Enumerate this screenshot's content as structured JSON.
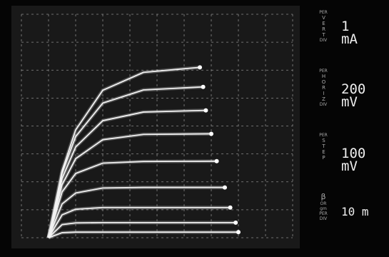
{
  "chart_data": {
    "type": "line",
    "xlim": [
      0,
      10
    ],
    "ylim": [
      0,
      8
    ],
    "xticks": [
      0,
      1,
      2,
      3,
      4,
      5,
      6,
      7,
      8,
      9,
      10
    ],
    "yticks": [
      0,
      1,
      2,
      3,
      4,
      5,
      6,
      7,
      8
    ],
    "grid": true,
    "color": "#f2f2f2",
    "series": [
      {
        "x": [
          1,
          1.5,
          2,
          3,
          4.5,
          6.58
        ],
        "values": [
          0,
          2.4,
          3.86,
          5.28,
          5.92,
          6.1
        ]
      },
      {
        "x": [
          1,
          1.5,
          2,
          3,
          4.5,
          6.7
        ],
        "values": [
          0,
          2.31,
          3.62,
          4.82,
          5.29,
          5.4
        ]
      },
      {
        "x": [
          1,
          1.5,
          2,
          3,
          4.5,
          6.8
        ],
        "values": [
          0,
          2.12,
          3.25,
          4.19,
          4.5,
          4.56
        ]
      },
      {
        "x": [
          1,
          1.5,
          2,
          3,
          4.5,
          7.0
        ],
        "values": [
          0,
          1.9,
          2.83,
          3.51,
          3.7,
          3.72
        ]
      },
      {
        "x": [
          1,
          1.5,
          2,
          3,
          4.5,
          7.2
        ],
        "values": [
          0,
          1.64,
          2.3,
          2.67,
          2.73,
          2.74
        ]
      },
      {
        "x": [
          1,
          1.5,
          2,
          3,
          4.5,
          7.5
        ],
        "values": [
          0,
          1.21,
          1.6,
          1.78,
          1.8,
          1.8
        ]
      },
      {
        "x": [
          1,
          1.5,
          2,
          3,
          4.5,
          7.7
        ],
        "values": [
          0,
          0.82,
          1.02,
          1.08,
          1.08,
          1.08
        ]
      },
      {
        "x": [
          1,
          1.5,
          2,
          3,
          4.5,
          7.9
        ],
        "values": [
          0,
          0.47,
          0.53,
          0.54,
          0.54,
          0.54
        ]
      },
      {
        "x": [
          1,
          1.5,
          2,
          3,
          4.5,
          8.0
        ],
        "values": [
          0,
          0.18,
          0.2,
          0.2,
          0.2,
          0.2
        ]
      }
    ]
  },
  "readouts": [
    {
      "per": "PER",
      "axis": "VERT",
      "div": "DIV",
      "value": "1",
      "unit": "mA"
    },
    {
      "per": "PER",
      "axis": "HORIZ",
      "div": "DIV",
      "value": "200",
      "unit": "mV"
    },
    {
      "per": "PER",
      "axis": "STEP",
      "value": "100",
      "unit": "mV"
    },
    {
      "symbol": "β",
      "or": "OR",
      "gm": "gm",
      "per": "PER",
      "div": "DIV",
      "value": "10 m"
    }
  ]
}
